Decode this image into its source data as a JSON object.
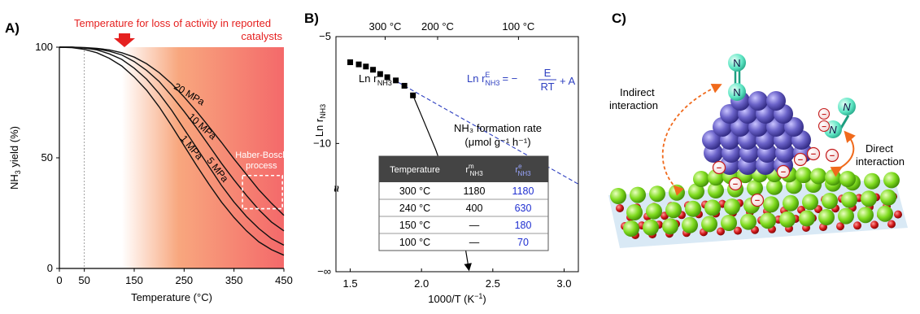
{
  "panels": {
    "a": {
      "label": "A)"
    },
    "b": {
      "label": "B)"
    },
    "c": {
      "label": "C)"
    }
  },
  "colors": {
    "annotation_red": "#e5201f",
    "gradient_left": "#ffffff",
    "gradient_mid": "#f8a77e",
    "gradient_right": "#f4696a",
    "extrapolation_blue": "#2d3fc0",
    "table_header_bg": "#444444",
    "table_value_blue": "#1f2fd0",
    "nitrogen_teal": "#5fe6c4",
    "ru_purple": "#6b63c9",
    "support_green": "#7fdb1f",
    "oxygen_red": "#d21a1a",
    "arrow_orange": "#f06a1c"
  },
  "chart_data": [
    {
      "type": "line",
      "panel": "A)",
      "title": "",
      "annotation_top_line1": "Temperature for loss of activity in reported",
      "annotation_top_line2": "catalysts",
      "annotation_box_line1": "Haber-Bosch",
      "annotation_box_line2": "process",
      "xlabel": "Temperature (°C)",
      "ylabel_main": "NH",
      "ylabel_sub": "3",
      "ylabel_rest": " yield (%)",
      "xlim": [
        0,
        450
      ],
      "ylim": [
        0,
        100
      ],
      "xticks": [
        "0",
        "50",
        "150",
        "250",
        "350",
        "450"
      ],
      "yticks": [
        "0",
        "50",
        "100"
      ],
      "x": [
        0,
        25,
        50,
        75,
        100,
        125,
        150,
        175,
        200,
        225,
        250,
        275,
        300,
        325,
        350,
        375,
        400,
        425,
        450
      ],
      "series": [
        {
          "name": "20 MPa",
          "values": [
            100,
            100,
            99.8,
            99.5,
            98.8,
            97.5,
            95.5,
            92.5,
            88.5,
            83.5,
            77.5,
            71,
            64,
            57,
            49.5,
            42.5,
            35.5,
            29.5,
            24
          ]
        },
        {
          "name": "10 MPa",
          "values": [
            100,
            100,
            99.7,
            99.2,
            98.2,
            96.5,
            93.5,
            89.5,
            84.5,
            78,
            71,
            63.5,
            55.5,
            47.5,
            40,
            33,
            26.5,
            21,
            17
          ]
        },
        {
          "name": "5 MPa",
          "values": [
            100,
            100,
            99.6,
            98.8,
            97,
            94.5,
            90.5,
            85.5,
            79,
            71.5,
            63,
            54.5,
            46,
            37.5,
            30,
            23.5,
            18,
            13.5,
            10.5
          ]
        },
        {
          "name": "1 MPa",
          "values": [
            100,
            99.8,
            99,
            97.5,
            95,
            91.5,
            86.5,
            80.5,
            73,
            64.5,
            55.5,
            46.5,
            38,
            30,
            23,
            17,
            12,
            8.5,
            6
          ]
        }
      ]
    },
    {
      "type": "scatter",
      "panel": "B)",
      "title": "",
      "xlabel": "1000/T (K",
      "xlabel_sup": "−1",
      "xlabel_end": ")",
      "ylabel_main": "Ln r",
      "ylabel_sub": "NH3",
      "xlim": [
        1.4,
        3.1
      ],
      "ylim": [
        -16,
        -5
      ],
      "xticks": [
        "1.5",
        "2.0",
        "2.5",
        "3.0"
      ],
      "xtick_values": [
        1.5,
        2.0,
        2.5,
        3.0
      ],
      "yticks": [
        "−5",
        "−10",
        "−∞"
      ],
      "top_axis_ticks": [
        "300 °C",
        "200 °C",
        "100 °C"
      ],
      "top_axis_values": [
        1.745,
        2.113,
        2.68
      ],
      "points_label_main": "Ln r",
      "points_label_sup": "M",
      "points_label_sub": "NH3",
      "points": {
        "x": [
          1.5,
          1.56,
          1.61,
          1.66,
          1.71,
          1.76,
          1.82,
          1.88,
          1.94
        ],
        "y": [
          -6.2,
          -6.3,
          -6.4,
          -6.55,
          -6.75,
          -6.9,
          -7.05,
          -7.3,
          -7.75
        ]
      },
      "extrapolation": {
        "x": [
          1.8,
          3.1
        ],
        "y": [
          -7.0,
          -11.9
        ]
      },
      "measured_curve": {
        "x": [
          1.94,
          2.0,
          2.1,
          2.2,
          2.3,
          2.33
        ],
        "y": [
          -7.75,
          -8.7,
          -10.3,
          -12.2,
          -14.6,
          -15.8
        ]
      },
      "formula_label": "Ln r",
      "formula_sup": "E",
      "formula_sub": "NH3",
      "formula_rest": "= −",
      "formula_num": "E",
      "formula_den": "RT",
      "formula_end": "+ A",
      "rate_label_line1": "NH₃ formation rate",
      "rate_label_line2": "(μmol g⁻¹ h⁻¹)",
      "table": {
        "headers": [
          "Temperature",
          "r",
          "r"
        ],
        "header_sups": [
          "",
          "m",
          "e"
        ],
        "header_subs": [
          "",
          "NH3",
          "NH3"
        ],
        "rows": [
          [
            "300 °C",
            "1180",
            "1180"
          ],
          [
            "240 °C",
            "400",
            "630"
          ],
          [
            "150 °C",
            "—",
            "180"
          ],
          [
            "100 °C",
            "—",
            "70"
          ]
        ]
      }
    }
  ],
  "illustration": {
    "labels": {
      "indirect_line1": "Indirect",
      "indirect_line2": "interaction",
      "direct_line1": "Direct",
      "direct_line2": "interaction",
      "nitrogen": "N",
      "minus": "−"
    }
  }
}
